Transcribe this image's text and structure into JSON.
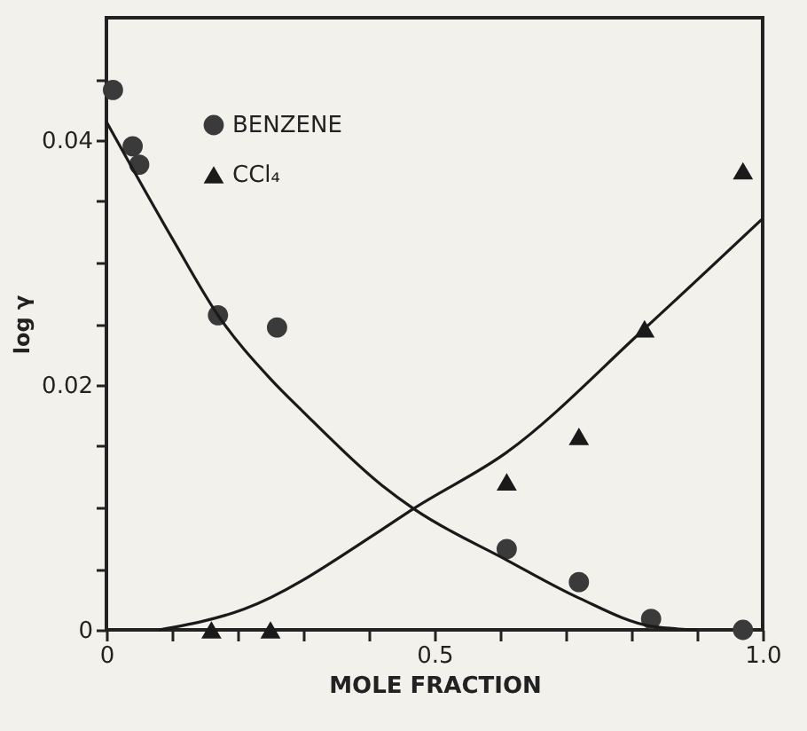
{
  "chart_data": {
    "type": "scatter",
    "xlabel": "MOLE FRACTION",
    "ylabel": "log γ",
    "xlim": [
      0,
      1.0
    ],
    "ylim": [
      0,
      0.05
    ],
    "xticks": [
      0,
      {
        "value": 0.1,
        "label": null
      },
      {
        "value": 0.2,
        "label": null
      },
      {
        "value": 0.3,
        "label": null
      },
      {
        "value": 0.4,
        "label": null
      },
      0.5,
      {
        "value": 0.6,
        "label": null
      },
      {
        "value": 0.7,
        "label": null
      },
      {
        "value": 0.8,
        "label": null
      },
      {
        "value": 0.9,
        "label": null
      },
      {
        "value": 1.0,
        "label": "1.0"
      }
    ],
    "yticks": [
      0,
      {
        "value": 0.005,
        "label": null
      },
      {
        "value": 0.01,
        "label": null
      },
      {
        "value": 0.015,
        "label": null
      },
      0.02,
      {
        "value": 0.025,
        "label": null
      },
      {
        "value": 0.03,
        "label": null
      },
      {
        "value": 0.035,
        "label": null
      },
      0.04,
      {
        "value": 0.045,
        "label": null
      }
    ],
    "legend": "top left",
    "grid": false,
    "series": [
      {
        "name": "BENZENE",
        "type": "scatter",
        "marker": "circle",
        "color": "#3a3a3a",
        "x": [
          0.01,
          0.04,
          0.05,
          0.17,
          0.26,
          0.61,
          0.72,
          0.83,
          0.97
        ],
        "values": [
          0.0441,
          0.0395,
          0.038,
          0.0257,
          0.0247,
          0.0066,
          0.0039,
          0.0009,
          0
        ]
      },
      {
        "name": "CCl₄",
        "type": "scatter",
        "marker": "triangle",
        "color": "#1a1a1a",
        "x": [
          0.16,
          0.25,
          0.61,
          0.72,
          0.82,
          0.97
        ],
        "values": [
          0,
          0,
          0.0121,
          0.0158,
          0.0246,
          0.0375
        ]
      },
      {
        "type": "line",
        "marker": "none",
        "line_style": "solid",
        "color": "#1a1a1a",
        "x": [
          0,
          0.1,
          0.17,
          0.25,
          0.3,
          0.42,
          0.468,
          0.61,
          0.72,
          0.83,
          0.9
        ],
        "values": [
          0.0415,
          0.032,
          0.0257,
          0.0205,
          0.0178,
          0.0118,
          0.0099,
          0.0057,
          0.0026,
          0.0003,
          0
        ]
      },
      {
        "type": "line",
        "marker": "none",
        "line_style": "solid",
        "color": "#1a1a1a",
        "x": [
          0.08,
          0.21,
          0.42,
          0.468,
          0.61,
          0.82,
          1.0
        ],
        "values": [
          0,
          0.0017,
          0.0082,
          0.0099,
          0.0145,
          0.0246,
          0.0336
        ]
      }
    ]
  }
}
